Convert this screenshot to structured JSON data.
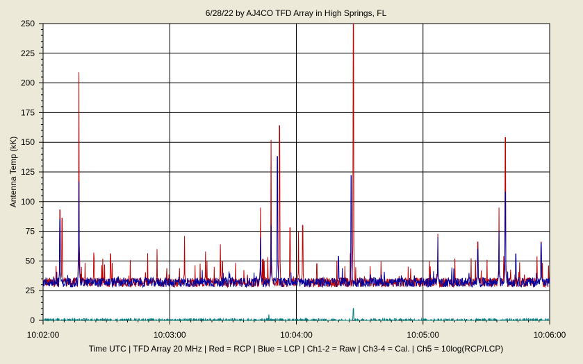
{
  "chart_data": {
    "type": "line",
    "title": "6/28/22  by  AJ4CO TFD Array  in  High Springs, FL",
    "ylabel": "Antenna Temp (kK)",
    "footer": "Time UTC | TFD Array 20 MHz | Red = RCP | Blue = LCP | Ch1-2 = Raw | Ch3-4 = Cal. | Ch5 = 10log(RCP/LCP)",
    "x_ticks": [
      "10:02:00",
      "10:03:00",
      "10:04:00",
      "10:05:00",
      "10:06:00"
    ],
    "xlim_seconds_after_10_02_00": [
      0,
      240
    ],
    "ylim": [
      0,
      250
    ],
    "y_ticks": [
      "0",
      "25",
      "50",
      "75",
      "100",
      "125",
      "150",
      "175",
      "200",
      "225",
      "250"
    ],
    "grid": true,
    "legend": "none",
    "baseline_level": 32,
    "series": [
      {
        "name": "RCP",
        "color": "#c00000",
        "spikes": [
          {
            "t": 8,
            "v": 93
          },
          {
            "t": 9,
            "v": 86
          },
          {
            "t": 17,
            "v": 209
          },
          {
            "t": 24,
            "v": 57
          },
          {
            "t": 32,
            "v": 56
          },
          {
            "t": 54,
            "v": 60
          },
          {
            "t": 67,
            "v": 71
          },
          {
            "t": 77,
            "v": 58
          },
          {
            "t": 84,
            "v": 64
          },
          {
            "t": 103,
            "v": 95
          },
          {
            "t": 108,
            "v": 152
          },
          {
            "t": 112,
            "v": 164
          },
          {
            "t": 117,
            "v": 78
          },
          {
            "t": 121,
            "v": 75
          },
          {
            "t": 123,
            "v": 80
          },
          {
            "t": 147,
            "v": 250
          },
          {
            "t": 187,
            "v": 73
          },
          {
            "t": 206,
            "v": 66
          },
          {
            "t": 216,
            "v": 95
          },
          {
            "t": 219,
            "v": 154
          },
          {
            "t": 234,
            "v": 54
          },
          {
            "t": 236,
            "v": 66
          }
        ]
      },
      {
        "name": "LCP",
        "color": "#0000a0",
        "spikes": [
          {
            "t": 8,
            "v": 85
          },
          {
            "t": 17,
            "v": 117
          },
          {
            "t": 103,
            "v": 70
          },
          {
            "t": 108,
            "v": 80
          },
          {
            "t": 111,
            "v": 138
          },
          {
            "t": 140,
            "v": 54
          },
          {
            "t": 146,
            "v": 122
          },
          {
            "t": 187,
            "v": 70
          },
          {
            "t": 206,
            "v": 60
          },
          {
            "t": 216,
            "v": 75
          },
          {
            "t": 219,
            "v": 108
          },
          {
            "t": 224,
            "v": 56
          },
          {
            "t": 236,
            "v": 65
          }
        ]
      },
      {
        "name": "Ch5",
        "color": "#008080",
        "level": 0,
        "spikes": [
          {
            "t": 107,
            "v": 5
          },
          {
            "t": 147,
            "v": 10
          }
        ]
      }
    ]
  }
}
